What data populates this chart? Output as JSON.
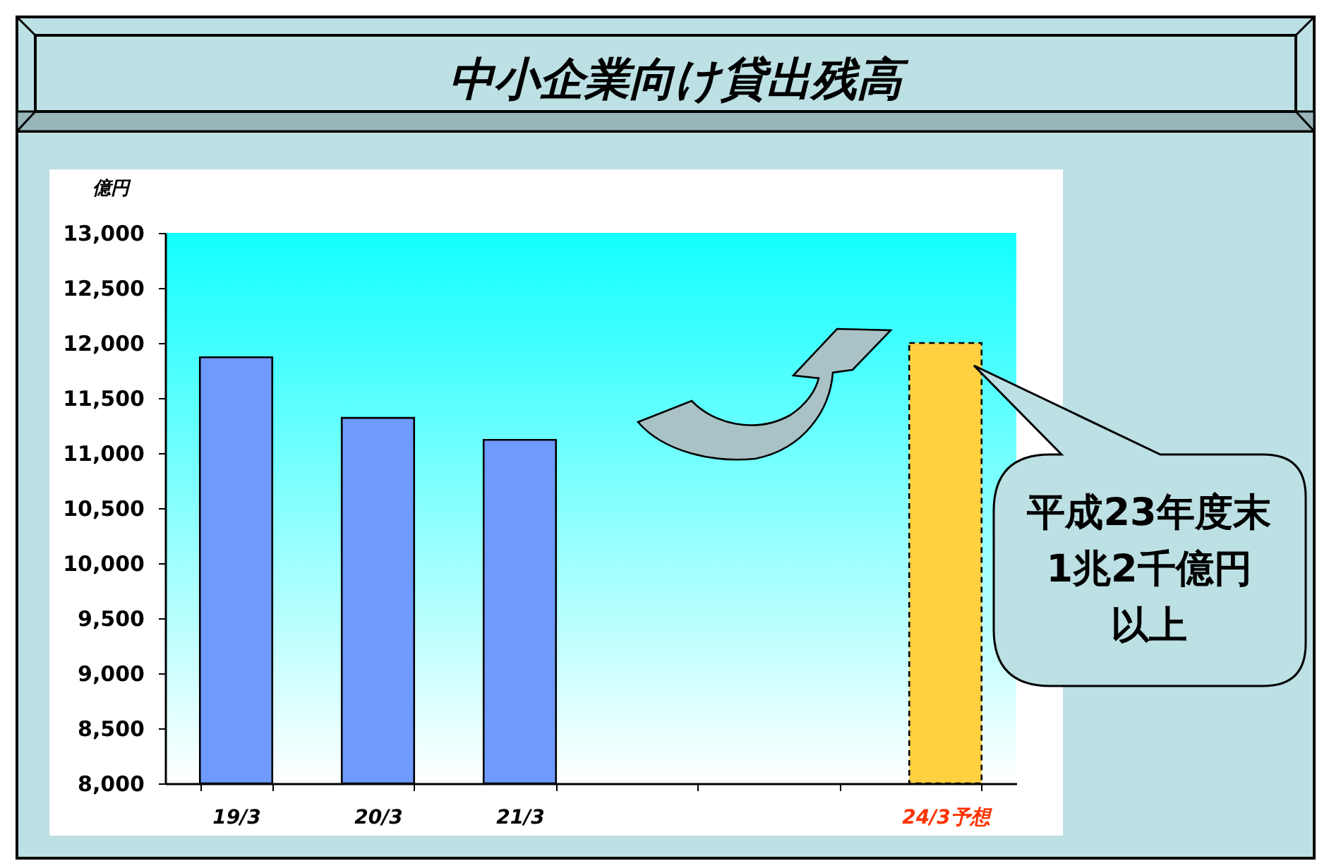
{
  "chart_data": {
    "type": "bar",
    "title": "中小企業向け貸出残高",
    "ylabel": "億円",
    "categories": [
      "19/3",
      "20/3",
      "21/3",
      null,
      null,
      "24/3予想"
    ],
    "series": [
      {
        "color": "#6f9bff",
        "values": [
          11870,
          11320,
          11120,
          null,
          null,
          null
        ]
      },
      {
        "color": "#ffd040",
        "line_style": "dashed",
        "values": [
          null,
          null,
          null,
          null,
          null,
          12000
        ]
      }
    ],
    "ylim": [
      8000,
      13000
    ],
    "yticks": [
      {
        "value": 8000,
        "label": "8,000"
      },
      {
        "value": 8500,
        "label": "8,500"
      },
      {
        "value": 9000,
        "label": "9,000"
      },
      {
        "value": 9500,
        "label": "9,500"
      },
      {
        "value": 10000,
        "label": "10,000"
      },
      {
        "value": 10500,
        "label": "10,500"
      },
      {
        "value": 11000,
        "label": "11,000"
      },
      {
        "value": 11500,
        "label": "11,500"
      },
      {
        "value": 12000,
        "label": "12,000"
      },
      {
        "value": 12500,
        "label": "12,500"
      },
      {
        "value": 13000,
        "label": "13,000"
      }
    ],
    "annotations": [
      "平成23年度末1兆2千億円以上"
    ]
  }
}
